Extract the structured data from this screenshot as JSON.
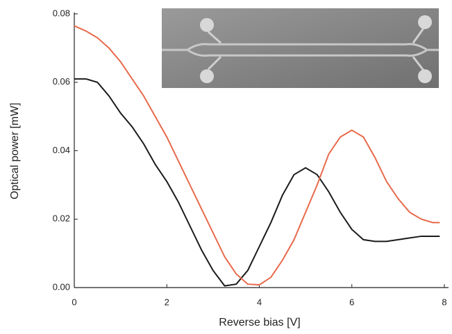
{
  "chart_data": {
    "type": "line",
    "x_label": "Reverse bias [V]",
    "y_label": "Optical power [mW]",
    "x": [
      0,
      0.25,
      0.5,
      0.75,
      1,
      1.25,
      1.5,
      1.75,
      2,
      2.25,
      2.5,
      2.75,
      3,
      3.25,
      3.5,
      3.75,
      4,
      4.25,
      4.5,
      4.75,
      5,
      5.25,
      5.5,
      5.75,
      6,
      6.25,
      6.5,
      6.75,
      7,
      7.25,
      7.5,
      7.75,
      7.9
    ],
    "series": [
      {
        "color": "#1a1a1a",
        "values": [
          0.061,
          0.061,
          0.06,
          0.056,
          0.051,
          0.047,
          0.042,
          0.036,
          0.031,
          0.025,
          0.018,
          0.011,
          0.005,
          0.0005,
          0.001,
          0.005,
          0.012,
          0.019,
          0.027,
          0.033,
          0.035,
          0.033,
          0.028,
          0.022,
          0.017,
          0.014,
          0.0135,
          0.0135,
          0.014,
          0.0145,
          0.015,
          0.015,
          0.015
        ]
      },
      {
        "color": "#e8694a",
        "values": [
          0.0765,
          0.075,
          0.073,
          0.07,
          0.066,
          0.061,
          0.056,
          0.05,
          0.044,
          0.037,
          0.03,
          0.023,
          0.016,
          0.009,
          0.004,
          0.001,
          0.0008,
          0.003,
          0.008,
          0.014,
          0.022,
          0.03,
          0.039,
          0.044,
          0.046,
          0.044,
          0.038,
          0.031,
          0.026,
          0.022,
          0.02,
          0.019,
          0.019
        ]
      }
    ],
    "xlim": [
      0,
      8
    ],
    "xticks": [
      0,
      2,
      4,
      6,
      8
    ],
    "ylim": [
      0,
      0.08
    ],
    "yticks": [
      {
        "value": 0,
        "label": "0.00"
      },
      {
        "value": 0.02,
        "label": "0.02"
      },
      {
        "value": 0.04,
        "label": "0.04"
      },
      {
        "value": 0.06,
        "label": "0.06"
      },
      {
        "value": 0.08,
        "label": "0.08"
      }
    ],
    "grid": false
  }
}
